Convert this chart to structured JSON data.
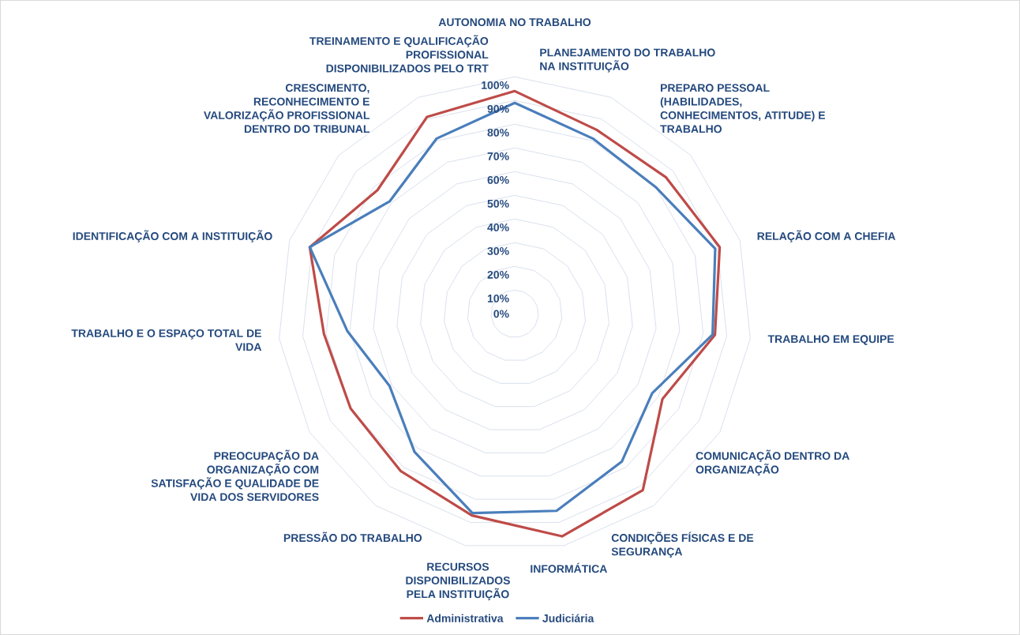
{
  "chart_data": {
    "type": "radar",
    "categories": [
      "AUTONOMIA NO TRABALHO",
      "PLANEJAMENTO DO TRABALHO NA INSTITUIÇÃO",
      "PREPARO PESSOAL (HABILIDADES, CONHECIMENTOS, ATITUDE) E TRABALHO",
      "RELAÇÃO COM A CHEFIA",
      "TRABALHO EM EQUIPE",
      "COMUNICAÇÃO DENTRO DA ORGANIZAÇÃO",
      "CONDIÇÕES FÍSICAS E DE SEGURANÇA",
      "INFORMÁTICA",
      "RECURSOS DISPONIBILIZADOS PELA INSTITUIÇÃO",
      "PRESSÃO DO TRABALHO",
      "PREOCUPAÇÃO DA ORGANIZAÇÃO COM SATISFAÇÃO E QUALIDADE DE VIDA DOS SERVIDORES",
      "TRABALHO E O ESPAÇO TOTAL DE VIDA",
      "IDENTIFICAÇÃO COM A INSTITUIÇÃO",
      "CRESCIMENTO, RECONHECIMENTO E VALORIZAÇÃO PROFISSIONAL DENTRO DO TRIBUNAL",
      "TREINAMENTO E QUALIFICAÇÃO PROFISSIONAL DISPONIBILIZADOS PELO TRT"
    ],
    "series": [
      {
        "name": "Administrativa",
        "color": "#be4b48",
        "values": [
          94,
          85,
          86,
          91,
          85,
          72,
          92,
          96,
          87,
          82,
          80,
          81,
          91,
          78,
          91
        ]
      },
      {
        "name": "Judiciária",
        "color": "#4a7ebb",
        "values": [
          89,
          81,
          80,
          89,
          84,
          67,
          77,
          85,
          86,
          72,
          61,
          71,
          91,
          71,
          81
        ]
      }
    ],
    "ylim": [
      0,
      100
    ],
    "yticks": [
      {
        "value": 0,
        "label": "0%"
      },
      {
        "value": 10,
        "label": "10%"
      },
      {
        "value": 20,
        "label": "20%"
      },
      {
        "value": 30,
        "label": "30%"
      },
      {
        "value": 40,
        "label": "40%"
      },
      {
        "value": 50,
        "label": "50%"
      },
      {
        "value": 60,
        "label": "60%"
      },
      {
        "value": 70,
        "label": "70%"
      },
      {
        "value": 80,
        "label": "80%"
      },
      {
        "value": 90,
        "label": "90%"
      },
      {
        "value": 100,
        "label": "100%"
      }
    ],
    "grid": true,
    "legend": "bottom"
  }
}
